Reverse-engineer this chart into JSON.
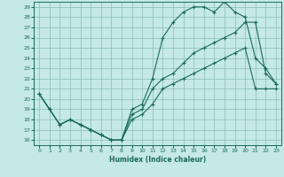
{
  "xlabel": "Humidex (Indice chaleur)",
  "bg_color": "#c5e8e8",
  "line_color": "#1a6b5a",
  "grid_color": "#8bbcbc",
  "xlim": [
    -0.5,
    23.5
  ],
  "ylim": [
    15.5,
    29.5
  ],
  "xticks": [
    0,
    1,
    2,
    3,
    4,
    5,
    6,
    7,
    8,
    9,
    10,
    11,
    12,
    13,
    14,
    15,
    16,
    17,
    18,
    19,
    20,
    21,
    22,
    23
  ],
  "yticks": [
    16,
    17,
    18,
    19,
    20,
    21,
    22,
    23,
    24,
    25,
    26,
    27,
    28,
    29
  ],
  "line1_x": [
    0,
    1,
    2,
    3,
    4,
    5,
    6,
    7,
    8,
    9,
    10,
    11,
    12,
    13,
    14,
    15,
    16,
    17,
    18,
    19,
    20,
    21,
    22,
    23
  ],
  "line1_y": [
    20.5,
    19,
    17.5,
    18,
    17.5,
    17,
    16.5,
    16,
    16,
    19,
    19.5,
    22,
    26,
    27.5,
    28.5,
    29,
    29,
    28.5,
    29.5,
    28.5,
    28,
    24,
    23,
    21.5
  ],
  "line2_x": [
    0,
    1,
    2,
    3,
    4,
    5,
    6,
    7,
    8,
    9,
    10,
    11,
    12,
    13,
    14,
    15,
    16,
    17,
    18,
    19,
    20,
    21,
    22,
    23
  ],
  "line2_y": [
    20.5,
    19,
    17.5,
    18,
    17.5,
    17,
    16.5,
    16,
    16,
    18.5,
    19,
    21,
    22,
    22.5,
    23.5,
    24.5,
    25,
    25.5,
    26,
    26.5,
    27.5,
    27.5,
    22.5,
    21.5
  ],
  "line3_x": [
    0,
    1,
    2,
    3,
    4,
    5,
    6,
    7,
    8,
    9,
    10,
    11,
    12,
    13,
    14,
    15,
    16,
    17,
    18,
    19,
    20,
    21,
    22,
    23
  ],
  "line3_y": [
    20.5,
    19,
    17.5,
    18,
    17.5,
    17,
    16.5,
    16,
    16,
    18,
    18.5,
    19.5,
    21,
    21.5,
    22,
    22.5,
    23,
    23.5,
    24,
    24.5,
    25,
    21,
    21,
    21
  ]
}
